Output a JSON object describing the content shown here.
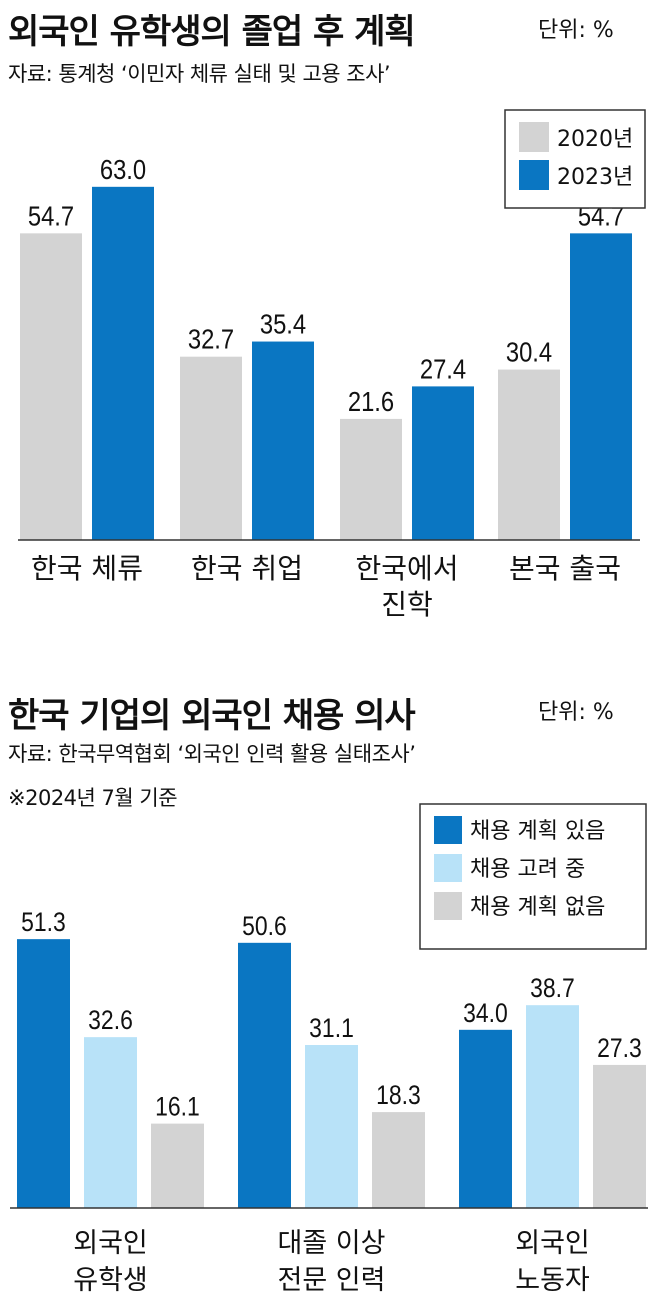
{
  "charts": [
    {
      "title": "외국인 유학생의 졸업 후 계획",
      "unit": "단위: %",
      "source": "자료: 통계청 ‘이민자 체류 실태 및 고용 조사’",
      "note": ""
    },
    {
      "title": "한국 기업의 외국인 채용 의사",
      "unit": "단위: %",
      "source": "자료: 한국무역협회 ‘외국인 인력 활용 실태조사’",
      "note": "※2024년 7월 기준"
    }
  ],
  "colors": {
    "gray": "#d3d3d3",
    "blue": "#0a76c2",
    "lightblue": "#b8e2f8",
    "axis": "#333333"
  },
  "chart_data": [
    {
      "type": "bar",
      "title": "외국인 유학생의 졸업 후 계획",
      "categories": [
        [
          "한국 체류"
        ],
        [
          "한국 취업"
        ],
        [
          "한국에서",
          "진학"
        ],
        [
          "본국 출국"
        ]
      ],
      "series": [
        {
          "name": "2020년",
          "color": "#d3d3d3",
          "values": [
            54.7,
            32.7,
            21.6,
            30.4
          ]
        },
        {
          "name": "2023년",
          "color": "#0a76c2",
          "values": [
            63.0,
            35.4,
            27.4,
            54.7
          ]
        }
      ],
      "ylim": [
        0,
        66
      ],
      "legend_position": "top-right",
      "grid": false
    },
    {
      "type": "bar",
      "title": "한국 기업의 외국인 채용 의사",
      "categories": [
        [
          "외국인",
          "유학생"
        ],
        [
          "대졸 이상",
          "전문 인력"
        ],
        [
          "외국인",
          "노동자"
        ]
      ],
      "series": [
        {
          "name": "채용 계획 있음",
          "color": "#0a76c2",
          "values": [
            51.3,
            50.6,
            34.0
          ]
        },
        {
          "name": "채용 고려 중",
          "color": "#b8e2f8",
          "values": [
            32.6,
            31.1,
            38.7
          ]
        },
        {
          "name": "채용 계획 없음",
          "color": "#d3d3d3",
          "values": [
            16.1,
            18.3,
            27.3
          ]
        }
      ],
      "ylim": [
        0,
        54
      ],
      "legend_position": "top-right",
      "grid": false
    }
  ]
}
